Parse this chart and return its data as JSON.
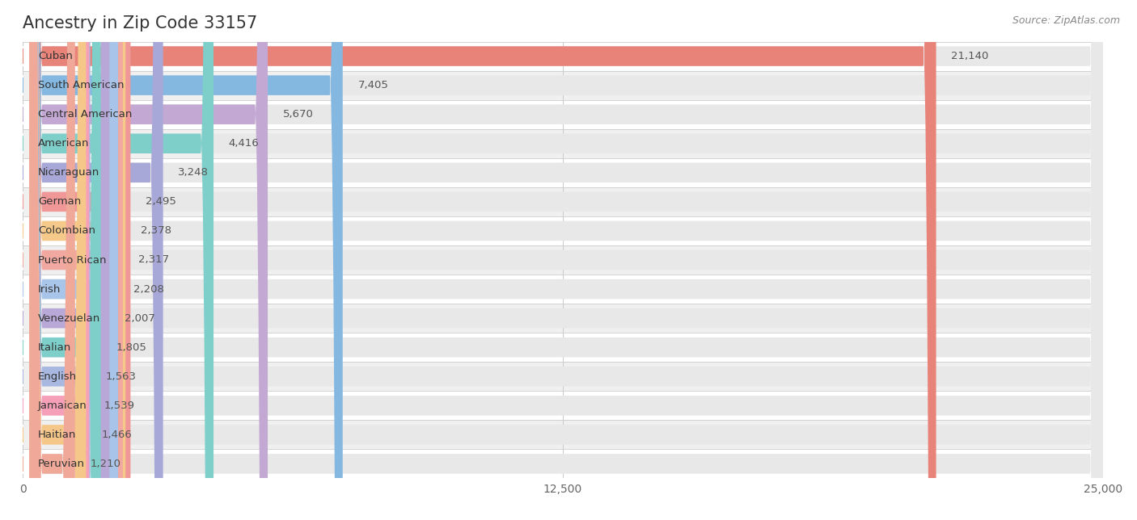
{
  "title": "Ancestry in Zip Code 33157",
  "source": "Source: ZipAtlas.com",
  "categories": [
    "Cuban",
    "South American",
    "Central American",
    "American",
    "Nicaraguan",
    "German",
    "Colombian",
    "Puerto Rican",
    "Irish",
    "Venezuelan",
    "Italian",
    "English",
    "Jamaican",
    "Haitian",
    "Peruvian"
  ],
  "values": [
    21140,
    7405,
    5670,
    4416,
    3248,
    2495,
    2378,
    2317,
    2208,
    2007,
    1805,
    1563,
    1539,
    1466,
    1210
  ],
  "bar_colors": [
    "#E8837A",
    "#85B8E0",
    "#C4A8D4",
    "#7ECECA",
    "#A8A8D8",
    "#F09898",
    "#F5C98A",
    "#F0A8A0",
    "#A8C4E8",
    "#B8A8D8",
    "#7ECECA",
    "#A8B8E0",
    "#F5A0B8",
    "#F5C88A",
    "#F0A898"
  ],
  "value_labels": [
    "21,140",
    "7,405",
    "5,670",
    "4,416",
    "3,248",
    "2,495",
    "2,378",
    "2,317",
    "2,208",
    "2,007",
    "1,805",
    "1,563",
    "1,539",
    "1,466",
    "1,210"
  ],
  "xlim": [
    0,
    25000
  ],
  "xticks": [
    0,
    12500,
    25000
  ],
  "xtick_labels": [
    "0",
    "12,500",
    "25,000"
  ],
  "bg_color": "#ffffff",
  "row_colors": [
    "#ffffff",
    "#f0f0f0"
  ],
  "bar_bg_color": "#e8e8e8",
  "title_fontsize": 15,
  "label_fontsize": 9.5,
  "value_fontsize": 9.5,
  "bar_height": 0.68
}
